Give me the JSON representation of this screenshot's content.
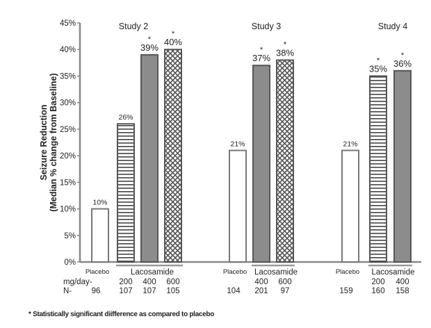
{
  "chart_data": {
    "type": "bar",
    "ylabel": "Seizure Reduction",
    "ylabel_sub": "(Median % change from Baseline)",
    "ylim": [
      0,
      45
    ],
    "yticks": [
      "0%",
      "5%",
      "10%",
      "15%",
      "20%",
      "25%",
      "30%",
      "35%",
      "40%",
      "45%"
    ],
    "grid": false,
    "row_labels": {
      "dose": "mg/day-",
      "n": "N-"
    },
    "group_label_placebo": "Placebo",
    "group_label_drug": "Lacosamide",
    "studies": [
      {
        "title": "Study 2",
        "bars": [
          {
            "dose": "Placebo",
            "value": 10,
            "label": "10%",
            "n": "96",
            "pattern": "open",
            "significant": false
          },
          {
            "dose": "200",
            "value": 26,
            "label": "26%",
            "n": "107",
            "pattern": "hlines",
            "significant": false
          },
          {
            "dose": "400",
            "value": 39,
            "label": "39%",
            "n": "107",
            "pattern": "solid",
            "significant": true
          },
          {
            "dose": "600",
            "value": 40,
            "label": "40%",
            "n": "105",
            "pattern": "cross",
            "significant": true
          }
        ]
      },
      {
        "title": "Study 3",
        "bars": [
          {
            "dose": "Placebo",
            "value": 21,
            "label": "21%",
            "n": "104",
            "pattern": "open",
            "significant": false
          },
          {
            "dose": "400",
            "value": 37,
            "label": "37%",
            "n": "201",
            "pattern": "solid",
            "significant": true
          },
          {
            "dose": "600",
            "value": 38,
            "label": "38%",
            "n": "97",
            "pattern": "cross",
            "significant": true
          }
        ]
      },
      {
        "title": "Study 4",
        "bars": [
          {
            "dose": "Placebo",
            "value": 21,
            "label": "21%",
            "n": "159",
            "pattern": "open",
            "significant": false
          },
          {
            "dose": "200",
            "value": 35,
            "label": "35%",
            "n": "160",
            "pattern": "hlines",
            "significant": true
          },
          {
            "dose": "400",
            "value": 36,
            "label": "36%",
            "n": "158",
            "pattern": "solid",
            "significant": true
          }
        ]
      }
    ],
    "significance_marker": "*",
    "footnote": "* Statistically significant diifference as compared to placebo"
  },
  "colors": {
    "axis": "#888888",
    "solid": "#8c8c8c",
    "outline": "#555555"
  }
}
